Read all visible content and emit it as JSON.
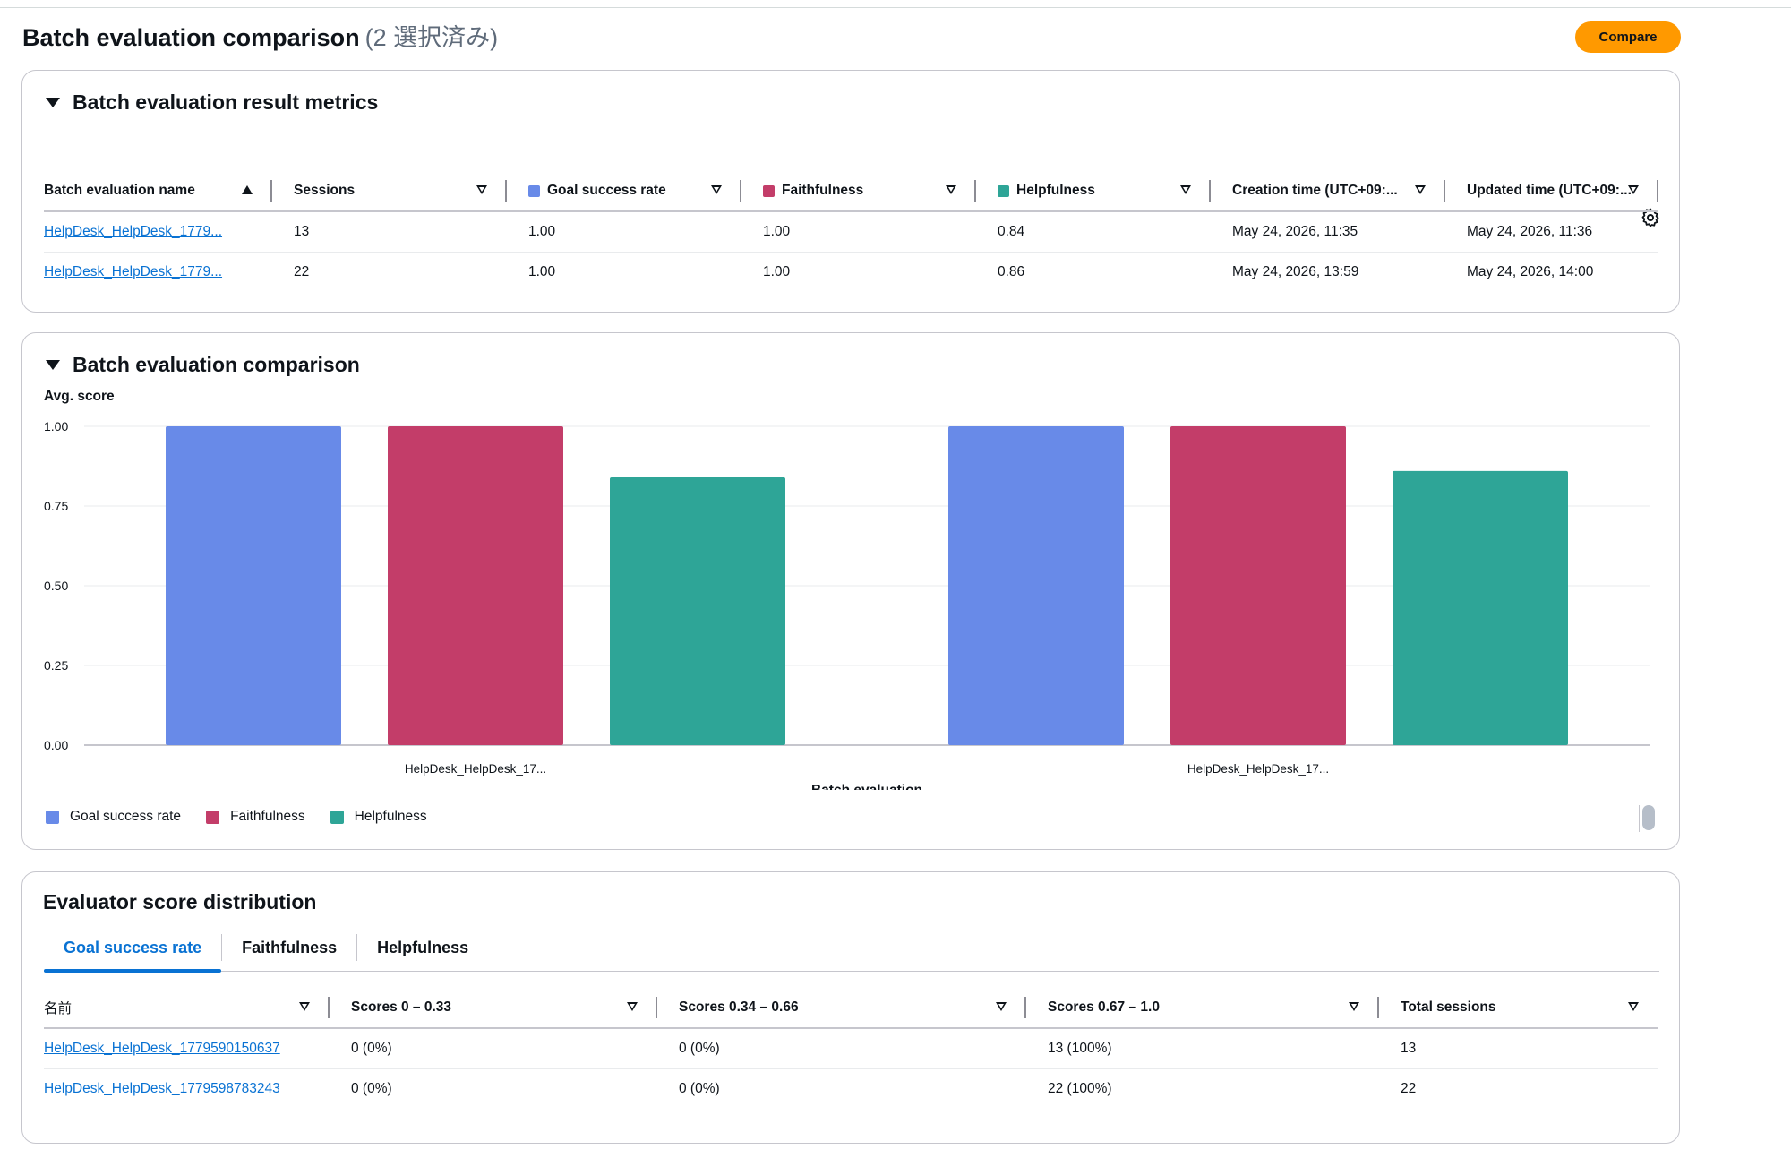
{
  "header": {
    "title": "Batch evaluation comparison",
    "count": "(2 選択済み)",
    "compare_label": "Compare"
  },
  "colors": {
    "goal": "#688ae8",
    "faith": "#c33d69",
    "help": "#2ea597",
    "accent": "#ff9900",
    "link": "#0972d3"
  },
  "metrics_panel": {
    "title": "Batch evaluation result metrics",
    "columns": [
      "Batch evaluation name",
      "Sessions",
      "Goal success rate",
      "Faithfulness",
      "Helpfulness",
      "Creation time (UTC+09:...",
      "Updated time (UTC+09:..."
    ],
    "rows": [
      [
        "HelpDesk_HelpDesk_1779...",
        "13",
        "1.00",
        "1.00",
        "0.84",
        "May 24, 2026, 11:35",
        "May 24, 2026, 11:36"
      ],
      [
        "HelpDesk_HelpDesk_1779...",
        "22",
        "1.00",
        "1.00",
        "0.86",
        "May 24, 2026, 13:59",
        "May 24, 2026, 14:00"
      ]
    ]
  },
  "comparison_panel": {
    "title": "Batch evaluation comparison"
  },
  "chart_data": {
    "type": "bar",
    "ylabel": "Avg. score",
    "xlabel": "Batch evaluation",
    "categories": [
      "HelpDesk_HelpDesk_17...",
      "HelpDesk_HelpDesk_17..."
    ],
    "yticks": [
      "0.00",
      "0.25",
      "0.50",
      "0.75",
      "1.00"
    ],
    "ylim": [
      0,
      1
    ],
    "grid": true,
    "legend_position": "bottom-left",
    "series": [
      {
        "name": "Goal success rate",
        "values": [
          1.0,
          1.0
        ],
        "color": "#688ae8"
      },
      {
        "name": "Faithfulness",
        "values": [
          1.0,
          1.0
        ],
        "color": "#c33d69"
      },
      {
        "name": "Helpfulness",
        "values": [
          0.84,
          0.86
        ],
        "color": "#2ea597"
      }
    ]
  },
  "distribution_panel": {
    "title": "Evaluator score distribution",
    "tabs": [
      "Goal success rate",
      "Faithfulness",
      "Helpfulness"
    ],
    "columns": [
      "名前",
      "Scores 0 – 0.33",
      "Scores 0.34 – 0.66",
      "Scores 0.67 – 1.0",
      "Total sessions"
    ],
    "rows": [
      [
        "HelpDesk_HelpDesk_1779590150637",
        "0 (0%)",
        "0 (0%)",
        "13 (100%)",
        "13"
      ],
      [
        "HelpDesk_HelpDesk_1779598783243",
        "0 (0%)",
        "0 (0%)",
        "22 (100%)",
        "22"
      ]
    ]
  }
}
